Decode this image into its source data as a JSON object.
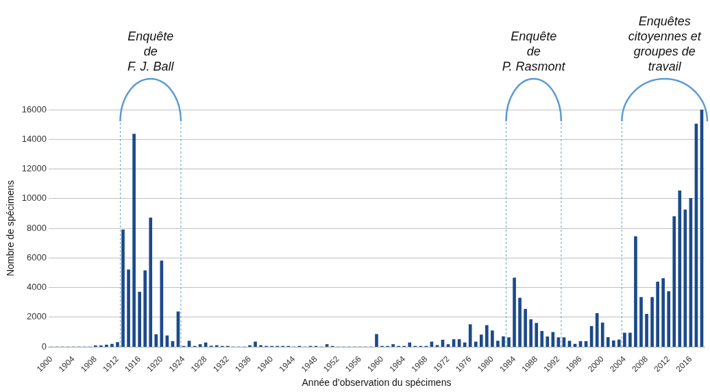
{
  "chart_data": {
    "type": "bar",
    "xlabel": "Année d’observation du spécimens",
    "ylabel": "Nombre de spécimens",
    "x": [
      1900,
      1901,
      1902,
      1903,
      1904,
      1905,
      1906,
      1907,
      1908,
      1909,
      1910,
      1911,
      1912,
      1913,
      1914,
      1915,
      1916,
      1917,
      1918,
      1919,
      1920,
      1921,
      1922,
      1923,
      1924,
      1925,
      1926,
      1927,
      1928,
      1929,
      1930,
      1931,
      1932,
      1933,
      1934,
      1935,
      1936,
      1937,
      1938,
      1939,
      1940,
      1941,
      1942,
      1943,
      1944,
      1945,
      1946,
      1947,
      1948,
      1949,
      1950,
      1951,
      1952,
      1953,
      1954,
      1955,
      1956,
      1957,
      1958,
      1959,
      1960,
      1961,
      1962,
      1963,
      1964,
      1965,
      1966,
      1967,
      1968,
      1969,
      1970,
      1971,
      1972,
      1973,
      1974,
      1975,
      1976,
      1977,
      1978,
      1979,
      1980,
      1981,
      1982,
      1983,
      1984,
      1985,
      1986,
      1987,
      1988,
      1989,
      1990,
      1991,
      1992,
      1993,
      1994,
      1995,
      1996,
      1997,
      1998,
      1999,
      2000,
      2001,
      2002,
      2003,
      2004,
      2005,
      2006,
      2007,
      2008,
      2009,
      2010,
      2011,
      2012,
      2013,
      2014,
      2015,
      2016,
      2017,
      2018
    ],
    "values": [
      0,
      0,
      0,
      0,
      0,
      0,
      0,
      0,
      80,
      80,
      130,
      190,
      300,
      7900,
      5200,
      14350,
      3700,
      5150,
      8700,
      830,
      5800,
      750,
      370,
      2370,
      50,
      390,
      50,
      160,
      280,
      60,
      100,
      50,
      50,
      0,
      0,
      0,
      100,
      340,
      100,
      50,
      50,
      50,
      50,
      50,
      0,
      50,
      0,
      50,
      50,
      0,
      160,
      50,
      0,
      0,
      0,
      0,
      0,
      0,
      0,
      850,
      50,
      50,
      160,
      50,
      50,
      280,
      50,
      50,
      50,
      340,
      110,
      460,
      160,
      500,
      500,
      280,
      1510,
      340,
      810,
      1450,
      1090,
      390,
      700,
      630,
      4650,
      3300,
      2550,
      1850,
      1600,
      1050,
      680,
      980,
      630,
      630,
      400,
      190,
      370,
      370,
      1390,
      2260,
      1620,
      640,
      420,
      480,
      940,
      940,
      7450,
      3340,
      2210,
      3340,
      4380,
      4610,
      3740,
      8800,
      10530,
      9250,
      10020,
      15040,
      16000
    ],
    "color": "#1b4a8a",
    "xlim": [
      1899.5,
      2018.5
    ],
    "xticks": [
      1900,
      1904,
      1908,
      1912,
      1916,
      1920,
      1924,
      1928,
      1932,
      1936,
      1940,
      1944,
      1948,
      1952,
      1956,
      1960,
      1964,
      1968,
      1972,
      1976,
      1980,
      1984,
      1988,
      1992,
      1996,
      2000,
      2004,
      2008,
      2012,
      2016
    ],
    "ylim": [
      0,
      16000
    ],
    "yticks": [
      0,
      2000,
      4000,
      6000,
      8000,
      10000,
      12000,
      14000,
      16000
    ],
    "grid": "y",
    "legend": false,
    "ref_lines": [
      {
        "axis": "x",
        "value": 1912.5,
        "color": "#5b9bd5",
        "line_style": "dashed"
      },
      {
        "axis": "x",
        "value": 1923.5,
        "color": "#5b9bd5",
        "line_style": "dashed"
      },
      {
        "axis": "x",
        "value": 1982.5,
        "color": "#5b9bd5",
        "line_style": "dashed"
      },
      {
        "axis": "x",
        "value": 1992.5,
        "color": "#5b9bd5",
        "line_style": "dashed"
      },
      {
        "axis": "x",
        "value": 2003.5,
        "color": "#5b9bd5",
        "line_style": "dashed"
      }
    ],
    "annotations": [
      "Enquête\nde\nF. J. Ball",
      "Enquête\nde\nP. Rasmont",
      "Enquêtes\ncitoyennes et\ngroupes de\ntravail"
    ]
  }
}
